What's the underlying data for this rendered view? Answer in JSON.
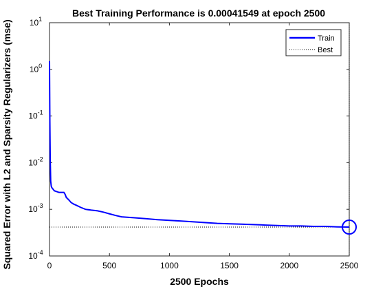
{
  "chart_data": {
    "type": "line",
    "title": "Best Training Performance is 0.00041549 at epoch 2500",
    "xlabel": "2500 Epochs",
    "ylabel": "Squared Error with L2 and Sparsity Regularizers  (mse)",
    "xlim": [
      0,
      2500
    ],
    "ylim": [
      0.0001,
      10
    ],
    "yscale": "log",
    "xticks": [
      0,
      500,
      1000,
      1500,
      2000,
      2500
    ],
    "yticks": [
      {
        "base": "10",
        "exp": "-4",
        "value": 0.0001
      },
      {
        "base": "10",
        "exp": "-3",
        "value": 0.001
      },
      {
        "base": "10",
        "exp": "-2",
        "value": 0.01
      },
      {
        "base": "10",
        "exp": "-1",
        "value": 0.1
      },
      {
        "base": "10",
        "exp": "0",
        "value": 1
      },
      {
        "base": "10",
        "exp": "1",
        "value": 10
      }
    ],
    "grid": false,
    "legend_position": "top-right",
    "series": [
      {
        "name": "Train",
        "color": "#0000ff",
        "style": "solid",
        "x": [
          0,
          3,
          6,
          10,
          15,
          20,
          30,
          40,
          60,
          80,
          100,
          120,
          130,
          140,
          160,
          180,
          200,
          230,
          260,
          300,
          350,
          400,
          450,
          500,
          550,
          600,
          700,
          800,
          900,
          1000,
          1100,
          1200,
          1300,
          1400,
          1500,
          1600,
          1700,
          1800,
          1900,
          2000,
          2100,
          2200,
          2300,
          2400,
          2500
        ],
        "y": [
          1.5,
          0.08,
          0.012,
          0.004,
          0.0031,
          0.0029,
          0.0027,
          0.0025,
          0.0024,
          0.0023,
          0.0023,
          0.0023,
          0.0021,
          0.0018,
          0.0016,
          0.0014,
          0.0013,
          0.0012,
          0.0011,
          0.001,
          0.00096,
          0.00093,
          0.00087,
          0.0008,
          0.00074,
          0.00069,
          0.00066,
          0.00063,
          0.0006,
          0.00058,
          0.00056,
          0.00054,
          0.00052,
          0.0005,
          0.00049,
          0.00048,
          0.00047,
          0.00046,
          0.00045,
          0.00044,
          0.00044,
          0.00043,
          0.00043,
          0.00042,
          0.00041549
        ]
      },
      {
        "name": "Best",
        "color": "#000000",
        "style": "dotted",
        "y_value": 0.00041549
      }
    ],
    "best_point": {
      "x": 2500,
      "y": 0.00041549,
      "color": "#0000ff",
      "marker": "circle"
    },
    "goal_line": {
      "x": 2500,
      "color": "#000000",
      "style": "dotted"
    }
  }
}
